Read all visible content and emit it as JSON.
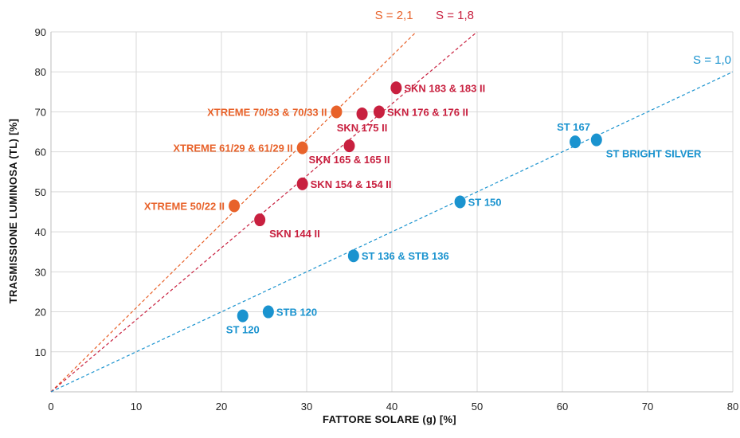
{
  "chart_data": {
    "type": "scatter",
    "xlabel": "FATTORE SOLARE (g) [%]",
    "ylabel": "TRASMISSIONE LUMINOSA (TL) [%]",
    "xlim": [
      0,
      80
    ],
    "ylim": [
      0,
      90
    ],
    "x_ticks": [
      0,
      10,
      20,
      30,
      40,
      50,
      60,
      70,
      80
    ],
    "y_ticks": [
      10,
      20,
      30,
      40,
      50,
      60,
      70,
      80,
      90
    ],
    "grid": true,
    "reference_lines": [
      {
        "label": "S = 2,1",
        "slope": 2.1,
        "color": "#e8622a"
      },
      {
        "label": "S = 1,8",
        "slope": 1.8,
        "color": "#c8203f"
      },
      {
        "label": "S = 1,0",
        "slope": 1.0,
        "color": "#1a93cf"
      }
    ],
    "series": [
      {
        "color": "#e8622a",
        "points": [
          {
            "label": "XTREME 70/33 & 70/33 II",
            "x": 33.5,
            "y": 70,
            "anchor": "start-left"
          },
          {
            "label": "XTREME 61/29 & 61/29 II",
            "x": 29.5,
            "y": 61,
            "anchor": "start-left"
          },
          {
            "label": "XTREME 50/22 II",
            "x": 21.5,
            "y": 46.5,
            "anchor": "start-left"
          }
        ]
      },
      {
        "color": "#c8203f",
        "points": [
          {
            "label": "SKN 183 & 183 II",
            "x": 40.5,
            "y": 76,
            "anchor": "right"
          },
          {
            "label": "SKN 176 & 176 II",
            "x": 38.5,
            "y": 70,
            "anchor": "right"
          },
          {
            "label": "SKN 175 II",
            "x": 36.5,
            "y": 69.5,
            "anchor": "below"
          },
          {
            "label": "SKN 165 & 165 II",
            "x": 35,
            "y": 61.5,
            "anchor": "below"
          },
          {
            "label": "SKN 154 & 154 II",
            "x": 29.5,
            "y": 52,
            "anchor": "right"
          },
          {
            "label": "SKN 144 II",
            "x": 24.5,
            "y": 43,
            "anchor": "below-right"
          }
        ]
      },
      {
        "color": "#1a93cf",
        "points": [
          {
            "label": "ST 167",
            "x": 61.5,
            "y": 62.5,
            "anchor": "above-left"
          },
          {
            "label": "ST BRIGHT SILVER",
            "x": 64,
            "y": 63,
            "anchor": "below-right"
          },
          {
            "label": "ST 150",
            "x": 48,
            "y": 47.5,
            "anchor": "right"
          },
          {
            "label": "ST 136 & STB 136",
            "x": 35.5,
            "y": 34,
            "anchor": "right"
          },
          {
            "label": "STB 120",
            "x": 25.5,
            "y": 20,
            "anchor": "right"
          },
          {
            "label": "ST 120",
            "x": 22.5,
            "y": 19,
            "anchor": "below"
          }
        ]
      }
    ]
  }
}
